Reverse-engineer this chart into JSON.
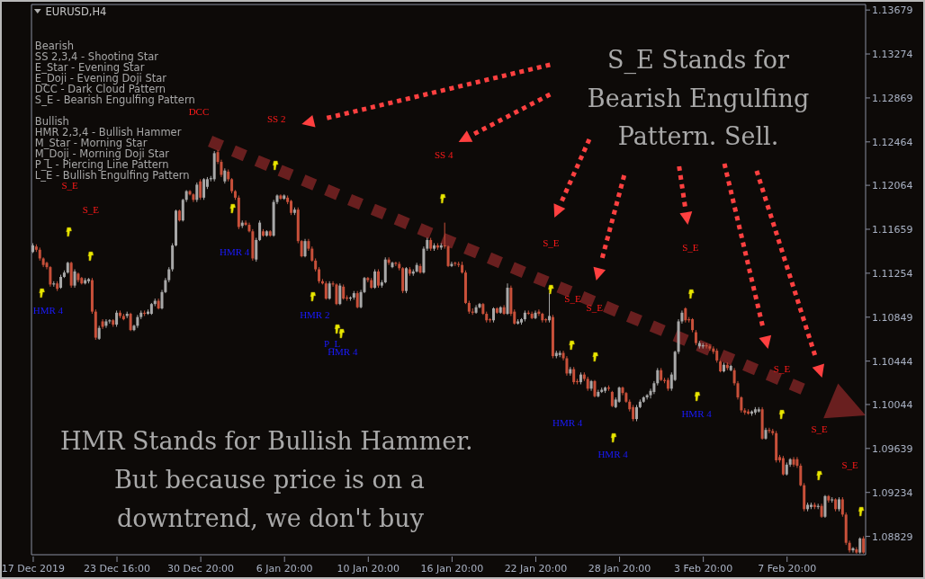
{
  "chart_data": {
    "type": "candlestick",
    "title": "EURUSD,H4",
    "categories": [
      "17 Dec 2019",
      null,
      null,
      null,
      null,
      null,
      null,
      null,
      null,
      null,
      null,
      null,
      null,
      null,
      null,
      null,
      null,
      null,
      null,
      null,
      null,
      null,
      null,
      null,
      "23 Dec 16:00",
      null,
      null,
      null,
      null,
      null,
      null,
      null,
      null,
      null,
      null,
      null,
      null,
      null,
      null,
      null,
      null,
      null,
      null,
      null,
      null,
      null,
      null,
      null,
      "30 Dec 20:00",
      null,
      null,
      null,
      null,
      null,
      null,
      null,
      null,
      null,
      null,
      null,
      null,
      null,
      null,
      null,
      null,
      null,
      null,
      null,
      null,
      null,
      null,
      null,
      "6 Jan 20:00",
      null,
      null,
      null,
      null,
      null,
      null,
      null,
      null,
      null,
      null,
      null,
      null,
      null,
      null,
      null,
      null,
      null,
      null,
      null,
      null,
      null,
      null,
      null,
      "10 Jan 20:00",
      null,
      null,
      null,
      null,
      null,
      null,
      null,
      null,
      null,
      null,
      null,
      null,
      null,
      null,
      null,
      null,
      null,
      null,
      null,
      null,
      null,
      null,
      null,
      "16 Jan 20:00",
      null,
      null,
      null,
      null,
      null,
      null,
      null,
      null,
      null,
      null,
      null,
      null,
      null,
      null,
      null,
      null,
      null,
      null,
      null,
      null,
      null,
      null,
      null,
      "22 Jan 20:00",
      null,
      null,
      null,
      null,
      null,
      null,
      null,
      null,
      null,
      null,
      null,
      null,
      null,
      null,
      null,
      null,
      null,
      null,
      null,
      null,
      null,
      null,
      null,
      "28 Jan 20:00",
      null,
      null,
      null,
      null,
      null,
      null,
      null,
      null,
      null,
      null,
      null,
      null,
      null,
      null,
      null,
      null,
      null,
      null,
      null,
      null,
      null,
      null,
      null,
      "3 Feb 20:00",
      null,
      null,
      null,
      null,
      null,
      null,
      null,
      null,
      null,
      null,
      null,
      null,
      null,
      null,
      null,
      null,
      null,
      null,
      null,
      null,
      null,
      null,
      null,
      "7 Feb 20:00",
      null,
      null,
      null,
      null,
      null,
      null,
      null,
      null,
      null,
      null,
      null,
      null,
      null,
      null,
      null,
      null,
      null,
      null,
      null,
      null,
      null,
      null
    ],
    "ohlc": [
      [
        1.1145,
        1.1153,
        1.1144,
        1.1151
      ],
      [
        1.115,
        1.1152,
        1.1145,
        1.1147
      ],
      [
        1.1147,
        1.1149,
        1.1137,
        1.1139
      ],
      [
        1.1139,
        1.114,
        1.1131,
        1.1133
      ],
      [
        1.1135,
        1.1136,
        1.1129,
        1.1131
      ],
      [
        1.1131,
        1.1132,
        1.1113,
        1.1115
      ],
      [
        1.1115,
        1.1118,
        1.1113,
        1.1116
      ],
      [
        1.1116,
        1.1118,
        1.1109,
        1.1111
      ],
      [
        1.1112,
        1.1124,
        1.1111,
        1.1122
      ],
      [
        1.1122,
        1.1128,
        1.1121,
        1.1126
      ],
      [
        1.1126,
        1.1136,
        1.1125,
        1.1135
      ],
      [
        1.1135,
        1.1136,
        1.1112,
        1.1114
      ],
      [
        1.1114,
        1.1129,
        1.1112,
        1.1127
      ],
      [
        1.1125,
        1.1126,
        1.1117,
        1.1119
      ],
      [
        1.1121,
        1.1122,
        1.1115,
        1.1116
      ],
      [
        1.1116,
        1.1121,
        1.1115,
        1.1119
      ],
      [
        1.1118,
        1.1121,
        1.1116,
        1.112
      ],
      [
        1.1119,
        1.1121,
        1.1088,
        1.109
      ],
      [
        1.109,
        1.1092,
        1.1064,
        1.1066
      ],
      [
        1.1065,
        1.1077,
        1.1064,
        1.1075
      ],
      [
        1.1081,
        1.1083,
        1.1074,
        1.1076
      ],
      [
        1.1077,
        1.1083,
        1.1075,
        1.1081
      ],
      [
        1.1081,
        1.1083,
        1.1079,
        1.1082
      ],
      [
        1.1082,
        1.1083,
        1.1076,
        1.1078
      ],
      [
        1.1078,
        1.1091,
        1.1076,
        1.1089
      ],
      [
        1.1089,
        1.1091,
        1.1084,
        1.1086
      ],
      [
        1.1086,
        1.1088,
        1.1082,
        1.1083
      ],
      [
        1.1086,
        1.109,
        1.1084,
        1.1088
      ],
      [
        1.1088,
        1.1089,
        1.1072,
        1.1073
      ],
      [
        1.1073,
        1.1078,
        1.1072,
        1.1077
      ],
      [
        1.1077,
        1.1087,
        1.1075,
        1.1085
      ],
      [
        1.1085,
        1.1091,
        1.1083,
        1.1089
      ],
      [
        1.1089,
        1.1091,
        1.1086,
        1.1088
      ],
      [
        1.1088,
        1.1092,
        1.1087,
        1.109
      ],
      [
        1.1088,
        1.1098,
        1.1087,
        1.1097
      ],
      [
        1.1097,
        1.1102,
        1.1095,
        1.11
      ],
      [
        1.11,
        1.1102,
        1.1092,
        1.1093
      ],
      [
        1.1093,
        1.111,
        1.1092,
        1.1108
      ],
      [
        1.1108,
        1.1121,
        1.1107,
        1.1119
      ],
      [
        1.1119,
        1.1131,
        1.1117,
        1.1129
      ],
      [
        1.1129,
        1.1153,
        1.1127,
        1.1151
      ],
      [
        1.1151,
        1.1184,
        1.115,
        1.1183
      ],
      [
        1.1183,
        1.1184,
        1.1173,
        1.1174
      ],
      [
        1.1174,
        1.1194,
        1.1173,
        1.1193
      ],
      [
        1.1193,
        1.1202,
        1.1191,
        1.1201
      ],
      [
        1.1201,
        1.1202,
        1.1197,
        1.1198
      ],
      [
        1.1198,
        1.1199,
        1.1191,
        1.1193
      ],
      [
        1.1193,
        1.1209,
        1.1191,
        1.1207
      ],
      [
        1.121,
        1.1212,
        1.1193,
        1.1195
      ],
      [
        1.1195,
        1.1213,
        1.1193,
        1.1212
      ],
      [
        1.1205,
        1.1214,
        1.1203,
        1.1212
      ],
      [
        1.1212,
        1.1215,
        1.121,
        1.1213
      ],
      [
        1.1212,
        1.1238,
        1.121,
        1.1236
      ],
      [
        1.1237,
        1.1239,
        1.1226,
        1.1228
      ],
      [
        1.1228,
        1.123,
        1.1214,
        1.1216
      ],
      [
        1.121,
        1.1222,
        1.1208,
        1.122
      ],
      [
        1.1219,
        1.1221,
        1.121,
        1.1212
      ],
      [
        1.1212,
        1.1213,
        1.1199,
        1.1201
      ],
      [
        1.1201,
        1.1202,
        1.1193,
        1.1195
      ],
      [
        1.1195,
        1.1197,
        1.1166,
        1.1168
      ],
      [
        1.1169,
        1.1174,
        1.1167,
        1.1172
      ],
      [
        1.1172,
        1.1174,
        1.1169,
        1.117
      ],
      [
        1.117,
        1.1172,
        1.1163,
        1.1164
      ],
      [
        1.1164,
        1.1166,
        1.1137,
        1.1139
      ],
      [
        1.1138,
        1.1158,
        1.1136,
        1.1156
      ],
      [
        1.1156,
        1.1174,
        1.1155,
        1.1172
      ],
      [
        1.1164,
        1.1166,
        1.1159,
        1.116
      ],
      [
        1.116,
        1.1165,
        1.1159,
        1.1164
      ],
      [
        1.1164,
        1.1165,
        1.1159,
        1.116
      ],
      [
        1.116,
        1.1193,
        1.1159,
        1.1191
      ],
      [
        1.1191,
        1.1198,
        1.1189,
        1.1197
      ],
      [
        1.1197,
        1.1198,
        1.1193,
        1.1194
      ],
      [
        1.1194,
        1.1198,
        1.1193,
        1.1197
      ],
      [
        1.1195,
        1.1197,
        1.1189,
        1.1191
      ],
      [
        1.1192,
        1.1193,
        1.1179,
        1.1181
      ],
      [
        1.1181,
        1.1186,
        1.1179,
        1.1184
      ],
      [
        1.1184,
        1.1186,
        1.1153,
        1.1155
      ],
      [
        1.1155,
        1.1156,
        1.114,
        1.1141
      ],
      [
        1.1141,
        1.1157,
        1.114,
        1.1155
      ],
      [
        1.1155,
        1.1157,
        1.1146,
        1.1148
      ],
      [
        1.1148,
        1.115,
        1.1136,
        1.1137
      ],
      [
        1.1137,
        1.1139,
        1.1127,
        1.1129
      ],
      [
        1.1129,
        1.1131,
        1.1116,
        1.1118
      ],
      [
        1.1118,
        1.112,
        1.1115,
        1.1116
      ],
      [
        1.1116,
        1.1118,
        1.1101,
        1.1102
      ],
      [
        1.1102,
        1.1118,
        1.1101,
        1.1116
      ],
      [
        1.1116,
        1.1118,
        1.1113,
        1.1115
      ],
      [
        1.1115,
        1.1116,
        1.1096,
        1.1097
      ],
      [
        1.1097,
        1.1116,
        1.1096,
        1.1114
      ],
      [
        1.1113,
        1.1115,
        1.1101,
        1.1102
      ],
      [
        1.1103,
        1.1105,
        1.11,
        1.1102
      ],
      [
        1.1102,
        1.1104,
        1.11,
        1.1103
      ],
      [
        1.1103,
        1.1109,
        1.1101,
        1.1107
      ],
      [
        1.1107,
        1.1109,
        1.1093,
        1.1094
      ],
      [
        1.1094,
        1.111,
        1.1093,
        1.1108
      ],
      [
        1.1108,
        1.1122,
        1.1107,
        1.1121
      ],
      [
        1.1121,
        1.1122,
        1.1117,
        1.1119
      ],
      [
        1.1119,
        1.1121,
        1.1111,
        1.1112
      ],
      [
        1.1112,
        1.1129,
        1.1111,
        1.1127
      ],
      [
        1.1127,
        1.1129,
        1.1112,
        1.1114
      ],
      [
        1.1114,
        1.1119,
        1.1112,
        1.1117
      ],
      [
        1.1117,
        1.114,
        1.1116,
        1.1138
      ],
      [
        1.1138,
        1.114,
        1.1133,
        1.1135
      ],
      [
        1.1131,
        1.1136,
        1.113,
        1.1135
      ],
      [
        1.1135,
        1.1136,
        1.1132,
        1.1134
      ],
      [
        1.1134,
        1.1136,
        1.1128,
        1.113
      ],
      [
        1.113,
        1.1131,
        1.1107,
        1.1109
      ],
      [
        1.1109,
        1.1131,
        1.1107,
        1.113
      ],
      [
        1.1129,
        1.1131,
        1.1123,
        1.1125
      ],
      [
        1.1125,
        1.1129,
        1.1123,
        1.1127
      ],
      [
        1.1127,
        1.1135,
        1.1126,
        1.1133
      ],
      [
        1.1132,
        1.1134,
        1.1125,
        1.1126
      ],
      [
        1.1126,
        1.115,
        1.1125,
        1.1148
      ],
      [
        1.1148,
        1.1158,
        1.1146,
        1.1156
      ],
      [
        1.1156,
        1.1158,
        1.1146,
        1.1148
      ],
      [
        1.1148,
        1.1153,
        1.1146,
        1.1151
      ],
      [
        1.1151,
        1.1153,
        1.1147,
        1.1149
      ],
      [
        1.1149,
        1.1153,
        1.1147,
        1.1151
      ],
      [
        1.1151,
        1.1172,
        1.1148,
        1.115
      ],
      [
        1.115,
        1.1151,
        1.1131,
        1.1132
      ],
      [
        1.1132,
        1.1136,
        1.1131,
        1.1134
      ],
      [
        1.1135,
        1.1136,
        1.1132,
        1.1134
      ],
      [
        1.1134,
        1.1136,
        1.1131,
        1.1133
      ],
      [
        1.1133,
        1.1136,
        1.1125,
        1.1126
      ],
      [
        1.1126,
        1.1128,
        1.1097,
        1.1098
      ],
      [
        1.1098,
        1.11,
        1.1088,
        1.109
      ],
      [
        1.109,
        1.1093,
        1.1087,
        1.1089
      ],
      [
        1.1089,
        1.1096,
        1.1088,
        1.1094
      ],
      [
        1.1094,
        1.1098,
        1.1093,
        1.1097
      ],
      [
        1.1097,
        1.1098,
        1.1087,
        1.1088
      ],
      [
        1.1088,
        1.109,
        1.108,
        1.1082
      ],
      [
        1.1083,
        1.1084,
        1.108,
        1.1082
      ],
      [
        1.1082,
        1.1094,
        1.108,
        1.1093
      ],
      [
        1.1093,
        1.1094,
        1.1088,
        1.1089
      ],
      [
        1.1089,
        1.1095,
        1.1088,
        1.1094
      ],
      [
        1.1094,
        1.1096,
        1.1087,
        1.1088
      ],
      [
        1.1088,
        1.1116,
        1.1087,
        1.1112
      ],
      [
        1.1112,
        1.1114,
        1.1086,
        1.1088
      ],
      [
        1.109,
        1.1092,
        1.1078,
        1.1079
      ],
      [
        1.1079,
        1.1083,
        1.1078,
        1.1081
      ],
      [
        1.108,
        1.1084,
        1.1078,
        1.1083
      ],
      [
        1.1083,
        1.1091,
        1.1081,
        1.1089
      ],
      [
        1.1089,
        1.1091,
        1.1087,
        1.1088
      ],
      [
        1.1088,
        1.109,
        1.1083,
        1.1084
      ],
      [
        1.1084,
        1.1091,
        1.1083,
        1.1089
      ],
      [
        1.109,
        1.1092,
        1.1086,
        1.1088
      ],
      [
        1.1088,
        1.1089,
        1.108,
        1.1082
      ],
      [
        1.1083,
        1.1084,
        1.108,
        1.1082
      ],
      [
        1.1082,
        1.1107,
        1.108,
        1.1086
      ],
      [
        1.1085,
        1.1087,
        1.1047,
        1.1049
      ],
      [
        1.1049,
        1.1054,
        1.1047,
        1.1052
      ],
      [
        1.105,
        1.1054,
        1.1048,
        1.1052
      ],
      [
        1.1052,
        1.1054,
        1.1045,
        1.1047
      ],
      [
        1.1047,
        1.1049,
        1.1031,
        1.1033
      ],
      [
        1.1033,
        1.1039,
        1.1031,
        1.1037
      ],
      [
        1.1037,
        1.1039,
        1.1023,
        1.1025
      ],
      [
        1.1026,
        1.1028,
        1.1023,
        1.1025
      ],
      [
        1.1025,
        1.1034,
        1.1023,
        1.1032
      ],
      [
        1.1032,
        1.1034,
        1.1026,
        1.1028
      ],
      [
        1.1028,
        1.103,
        1.1017,
        1.1019
      ],
      [
        1.1019,
        1.1027,
        1.1017,
        1.1026
      ],
      [
        1.1026,
        1.1027,
        1.1011,
        1.1012
      ],
      [
        1.1012,
        1.1018,
        1.1011,
        1.1016
      ],
      [
        1.1016,
        1.102,
        1.1015,
        1.1018
      ],
      [
        1.1017,
        1.1021,
        1.1015,
        1.102
      ],
      [
        1.102,
        1.1022,
        1.1017,
        1.1019
      ],
      [
        1.1016,
        1.1017,
        1.1002,
        1.1003
      ],
      [
        1.1002,
        1.1011,
        1.1001,
        1.1009
      ],
      [
        1.1007,
        1.1021,
        1.1006,
        1.102
      ],
      [
        1.102,
        1.1021,
        1.1013,
        1.1015
      ],
      [
        1.1015,
        1.1016,
        1.1006,
        1.1007
      ],
      [
        1.1007,
        1.1009,
        1.0998,
        1.1
      ],
      [
        1.1002,
        1.1004,
        1.0989,
        1.0991
      ],
      [
        1.0991,
        1.1004,
        1.0989,
        1.1002
      ],
      [
        1.1002,
        1.1009,
        1.1001,
        1.1007
      ],
      [
        1.1007,
        1.1012,
        1.1006,
        1.1011
      ],
      [
        1.1011,
        1.1014,
        1.1009,
        1.1013
      ],
      [
        1.1013,
        1.1019,
        1.101,
        1.1017
      ],
      [
        1.1016,
        1.1026,
        1.1014,
        1.1024
      ],
      [
        1.1024,
        1.1038,
        1.1022,
        1.1036
      ],
      [
        1.1036,
        1.1038,
        1.1026,
        1.1027
      ],
      [
        1.1027,
        1.1029,
        1.1024,
        1.1026
      ],
      [
        1.1027,
        1.1029,
        1.1017,
        1.1019
      ],
      [
        1.1019,
        1.1034,
        1.1017,
        1.1032
      ],
      [
        1.1027,
        1.1054,
        1.1026,
        1.1053
      ],
      [
        1.1053,
        1.1083,
        1.1051,
        1.1081
      ],
      [
        1.1081,
        1.1091,
        1.1079,
        1.1089
      ],
      [
        1.1093,
        1.1094,
        1.108,
        1.1082
      ],
      [
        1.1083,
        1.1085,
        1.108,
        1.1082
      ],
      [
        1.1083,
        1.1084,
        1.1071,
        1.1073
      ],
      [
        1.1071,
        1.1073,
        1.1059,
        1.1061
      ],
      [
        1.1058,
        1.1063,
        1.1056,
        1.1061
      ],
      [
        1.1058,
        1.1061,
        1.1056,
        1.1059
      ],
      [
        1.1059,
        1.1061,
        1.1056,
        1.1058
      ],
      [
        1.1058,
        1.106,
        1.1054,
        1.1056
      ],
      [
        1.1056,
        1.1058,
        1.1051,
        1.1053
      ],
      [
        1.1054,
        1.1056,
        1.1043,
        1.1045
      ],
      [
        1.1044,
        1.1045,
        1.1034,
        1.1035
      ],
      [
        1.1035,
        1.1043,
        1.1034,
        1.1041
      ],
      [
        1.1041,
        1.1043,
        1.1036,
        1.1038
      ],
      [
        1.1036,
        1.1041,
        1.1035,
        1.104
      ],
      [
        1.1036,
        1.1038,
        1.1022,
        1.1024
      ],
      [
        1.1024,
        1.1026,
        1.1009,
        1.1011
      ],
      [
        1.1011,
        1.1012,
        1.0997,
        1.0999
      ],
      [
        1.0999,
        1.1001,
        1.0995,
        1.0997
      ],
      [
        1.0998,
        1.1,
        1.0995,
        1.0996
      ],
      [
        1.0996,
        1.0999,
        1.0994,
        1.0998
      ],
      [
        1.0997,
        1.1002,
        1.0995,
        1.1
      ],
      [
        1.0998,
        1.1002,
        1.0997,
        1.1
      ],
      [
        1.1,
        1.1002,
        1.0972,
        1.0973
      ],
      [
        1.0973,
        1.0983,
        1.0972,
        1.0981
      ],
      [
        1.0981,
        1.0983,
        1.0978,
        1.098
      ],
      [
        1.098,
        1.0982,
        1.0976,
        1.0978
      ],
      [
        1.0978,
        1.098,
        1.0951,
        1.0953
      ],
      [
        1.0956,
        1.0958,
        1.0951,
        1.0953
      ],
      [
        1.0955,
        1.0957,
        1.0939,
        1.094
      ],
      [
        1.094,
        1.0951,
        1.0939,
        1.0949
      ],
      [
        1.0949,
        1.0955,
        1.0947,
        1.0954
      ],
      [
        1.0954,
        1.0956,
        1.0947,
        1.0949
      ],
      [
        1.0954,
        1.0956,
        1.0946,
        1.0948
      ],
      [
        1.0948,
        1.095,
        1.0929,
        1.093
      ],
      [
        1.093,
        1.0932,
        1.0906,
        1.0908
      ],
      [
        1.0908,
        1.0914,
        1.0906,
        1.0912
      ],
      [
        1.091,
        1.0914,
        1.0908,
        1.0912
      ],
      [
        1.0912,
        1.0914,
        1.0908,
        1.091
      ],
      [
        1.091,
        1.0913,
        1.0908,
        1.0911
      ],
      [
        1.0911,
        1.0913,
        1.09,
        1.0901
      ],
      [
        1.0901,
        1.0921,
        1.09,
        1.092
      ],
      [
        1.092,
        1.0921,
        1.0914,
        1.0916
      ],
      [
        1.0916,
        1.0919,
        1.0914,
        1.0917
      ],
      [
        1.0917,
        1.0918,
        1.0906,
        1.0908
      ],
      [
        1.0908,
        1.0919,
        1.0906,
        1.0917
      ],
      [
        1.0917,
        1.0919,
        1.0901,
        1.0903
      ],
      [
        1.0903,
        1.0905,
        1.0875,
        1.0877
      ],
      [
        1.0877,
        1.0879,
        1.0868,
        1.087
      ],
      [
        1.087,
        1.0873,
        1.0868,
        1.0872
      ],
      [
        1.0871,
        1.0873,
        1.0867,
        1.0868
      ],
      [
        1.0868,
        1.0882,
        1.0867,
        1.0881
      ],
      [
        1.0881,
        1.0883,
        1.0867,
        1.0868
      ]
    ],
    "colors": [
      "#a8a8a8",
      "#c8503a",
      "#c8503a",
      "#c8503a",
      "#c8503a",
      "#c8503a",
      "#a8a8a8",
      "#c8503a",
      "#a8a8a8",
      "#a8a8a8",
      "#a8a8a8",
      "#c8503a",
      "#a8a8a8",
      "#c8503a",
      "#c8503a",
      "#a8a8a8",
      "#a8a8a8",
      "#c8503a",
      "#c8503a",
      "#a8a8a8",
      "#c8503a",
      "#a8a8a8",
      "#a8a8a8",
      "#c8503a",
      "#a8a8a8",
      "#c8503a",
      "#c8503a",
      "#a8a8a8",
      "#c8503a",
      "#a8a8a8",
      "#a8a8a8",
      "#a8a8a8",
      "#c8503a",
      "#a8a8a8",
      "#a8a8a8",
      "#a8a8a8",
      "#c8503a",
      "#a8a8a8",
      "#a8a8a8",
      "#a8a8a8",
      "#a8a8a8",
      "#a8a8a8",
      "#c8503a",
      "#a8a8a8",
      "#a8a8a8",
      "#c8503a",
      "#c8503a",
      "#a8a8a8",
      "#c8503a",
      "#a8a8a8",
      "#a8a8a8",
      "#a8a8a8",
      "#a8a8a8",
      "#c8503a",
      "#c8503a",
      "#a8a8a8",
      "#c8503a",
      "#c8503a",
      "#c8503a",
      "#c8503a",
      "#a8a8a8",
      "#c8503a",
      "#c8503a",
      "#c8503a",
      "#a8a8a8",
      "#a8a8a8",
      "#c8503a",
      "#a8a8a8",
      "#c8503a",
      "#a8a8a8",
      "#a8a8a8",
      "#c8503a",
      "#a8a8a8",
      "#c8503a",
      "#c8503a",
      "#a8a8a8",
      "#c8503a",
      "#c8503a",
      "#a8a8a8",
      "#c8503a",
      "#c8503a",
      "#c8503a",
      "#c8503a",
      "#c8503a",
      "#c8503a",
      "#a8a8a8",
      "#c8503a",
      "#c8503a",
      "#a8a8a8",
      "#c8503a",
      "#c8503a",
      "#a8a8a8",
      "#a8a8a8",
      "#c8503a",
      "#a8a8a8",
      "#a8a8a8",
      "#c8503a",
      "#c8503a",
      "#a8a8a8",
      "#c8503a",
      "#a8a8a8",
      "#a8a8a8",
      "#c8503a",
      "#a8a8a8",
      "#c8503a",
      "#c8503a",
      "#c8503a",
      "#a8a8a8",
      "#c8503a",
      "#a8a8a8",
      "#a8a8a8",
      "#c8503a",
      "#a8a8a8",
      "#a8a8a8",
      "#c8503a",
      "#a8a8a8",
      "#c8503a",
      "#a8a8a8",
      "#c8503a",
      "#c8503a",
      "#a8a8a8",
      "#c8503a",
      "#c8503a",
      "#c8503a",
      "#c8503a",
      "#c8503a",
      "#c8503a",
      "#a8a8a8",
      "#a8a8a8",
      "#c8503a",
      "#c8503a",
      "#c8503a",
      "#a8a8a8",
      "#c8503a",
      "#a8a8a8",
      "#c8503a",
      "#a8a8a8",
      "#c8503a",
      "#c8503a",
      "#a8a8a8",
      "#a8a8a8",
      "#a8a8a8",
      "#c8503a",
      "#c8503a",
      "#a8a8a8",
      "#c8503a",
      "#c8503a",
      "#c8503a",
      "#a8a8a8",
      "#c8503a",
      "#a8a8a8",
      "#a8a8a8",
      "#c8503a",
      "#c8503a",
      "#a8a8a8",
      "#c8503a",
      "#c8503a",
      "#a8a8a8",
      "#c8503a",
      "#c8503a",
      "#a8a8a8",
      "#c8503a",
      "#a8a8a8",
      "#a8a8a8",
      "#a8a8a8",
      "#c8503a",
      "#c8503a",
      "#a8a8a8",
      "#a8a8a8",
      "#c8503a",
      "#c8503a",
      "#c8503a",
      "#c8503a",
      "#a8a8a8",
      "#a8a8a8",
      "#a8a8a8",
      "#a8a8a8",
      "#a8a8a8",
      "#a8a8a8",
      "#a8a8a8",
      "#c8503a",
      "#c8503a",
      "#c8503a",
      "#a8a8a8",
      "#a8a8a8",
      "#a8a8a8",
      "#a8a8a8",
      "#c8503a",
      "#c8503a",
      "#c8503a",
      "#c8503a",
      "#a8a8a8",
      "#a8a8a8",
      "#c8503a",
      "#c8503a",
      "#c8503a",
      "#c8503a",
      "#c8503a",
      "#a8a8a8",
      "#c8503a",
      "#a8a8a8",
      "#c8503a",
      "#c8503a",
      "#c8503a",
      "#c8503a",
      "#c8503a",
      "#a8a8a8",
      "#a8a8a8",
      "#a8a8a8",
      "#c8503a",
      "#a8a8a8",
      "#c8503a",
      "#c8503a",
      "#c8503a",
      "#c8503a",
      "#c8503a",
      "#a8a8a8",
      "#a8a8a8",
      "#c8503a",
      "#c8503a",
      "#c8503a",
      "#c8503a",
      "#a8a8a8",
      "#a8a8a8",
      "#c8503a",
      "#a8a8a8",
      "#c8503a",
      "#a8a8a8",
      "#c8503a",
      "#a8a8a8",
      "#c8503a",
      "#a8a8a8",
      "#c8503a",
      "#c8503a",
      "#c8503a",
      "#a8a8a8",
      "#c8503a",
      "#a8a8a8",
      "#c8503a"
    ],
    "ylim": [
      1.0866,
      1.1373
    ],
    "yticks": [
      1.08829,
      1.09234,
      1.09639,
      1.10044,
      1.10444,
      1.10849,
      1.11254,
      1.11659,
      1.12064,
      1.12464,
      1.12869,
      1.13274,
      1.13679
    ],
    "annotations": [
      "Bearish",
      "SS 2,3,4 - Shooting Star",
      "E_Star - Evening Star",
      "E_Doji - Evening Doji Star",
      "DCC - Dark Cloud Pattern",
      "S_E - Bearish Engulfing Pattern",
      "Bullish",
      "HMR 2,3,4 - Bullish Hammer",
      "M_Star - Morning Star",
      "M_Doji - Morning Doji Star",
      "P_L - Piercing Line Pattern",
      "L_E - Bullish Engulfing Pattern",
      "DCC",
      "SS 2",
      "SS 4",
      "S_E",
      "S_E",
      "S_E",
      "S_E",
      "S_E",
      "S_E",
      "S_E",
      "S_E",
      "S_E",
      "HMR 4",
      "HMR 4",
      "HMR 2",
      "P_L",
      "HMR 4",
      "HMR 4",
      "HMR 4",
      "HMR 4",
      "S_E Stands for",
      "Bearish Engulfing",
      "Pattern. Sell.",
      "HMR Stands for Bullish Hammer.",
      "But because price is on a",
      "downtrend, we don't buy"
    ]
  }
}
